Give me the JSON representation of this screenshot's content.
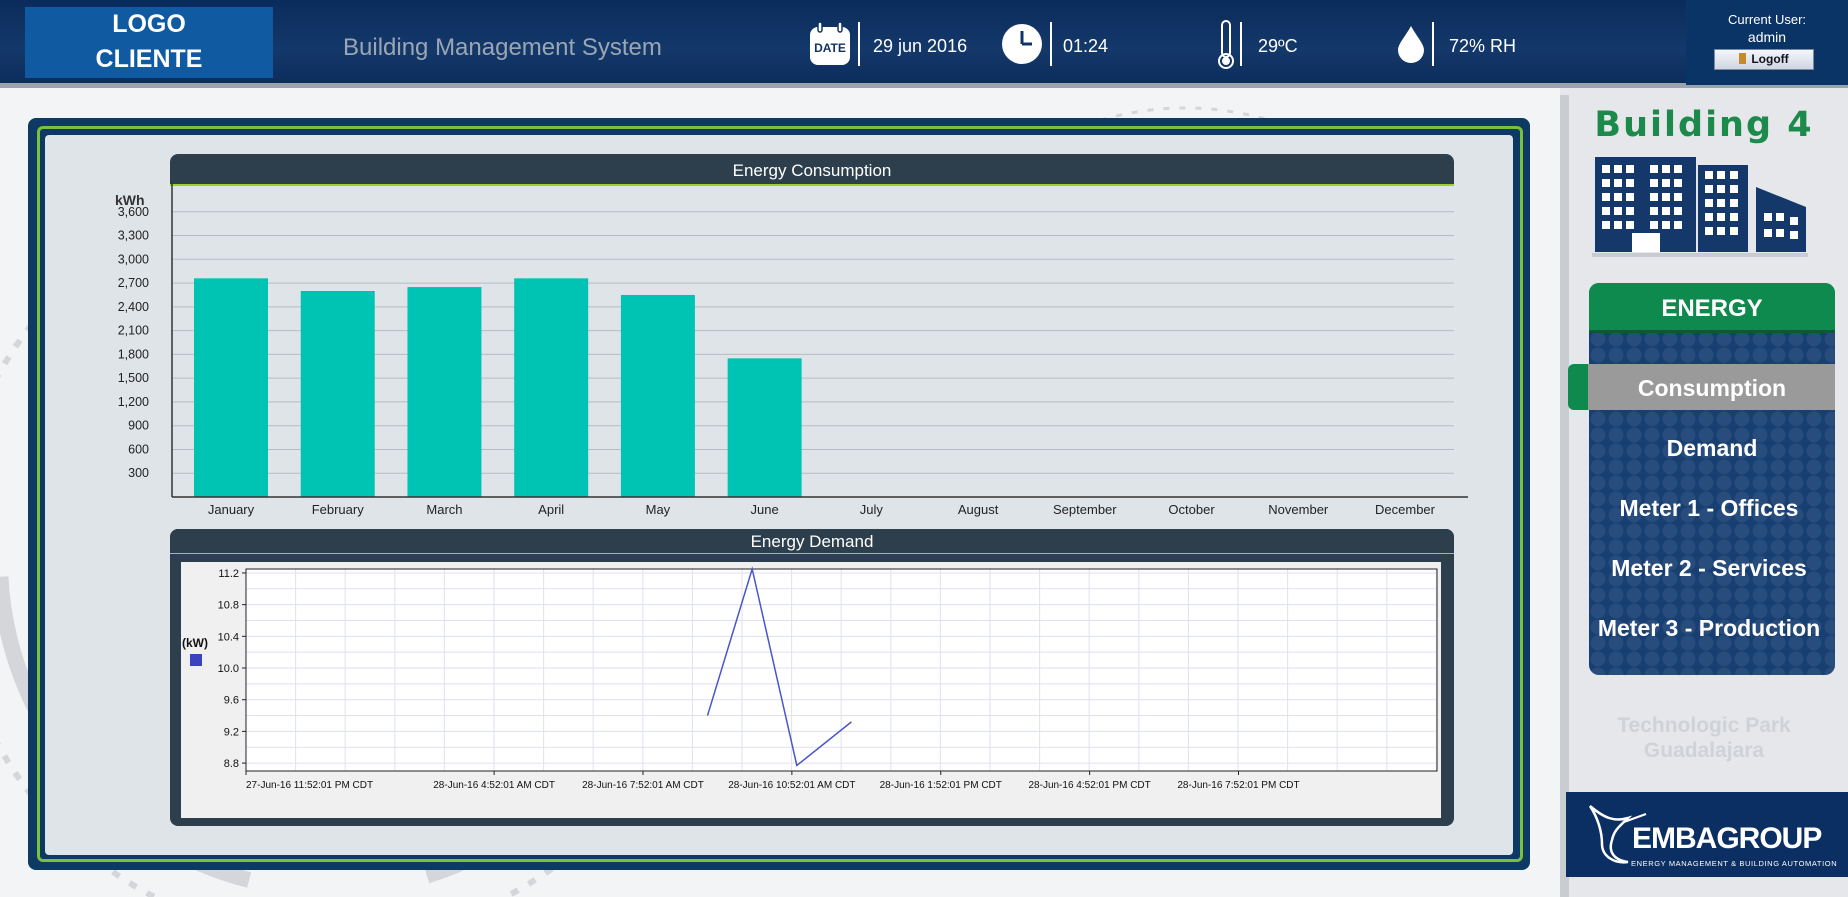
{
  "header": {
    "logo_line1": "LOGO",
    "logo_line2": "CLIENTE",
    "app_title": "Building Management System",
    "date_icon_label": "DATE",
    "date": "29 jun 2016",
    "time": "01:24",
    "temperature": "29ºC",
    "humidity": "72% RH",
    "user_label": "Current User:",
    "user_name": "admin",
    "logoff_label": "Logoff"
  },
  "sidebar": {
    "building_title": "Building 4",
    "section_title": "ENERGY",
    "nav_items": [
      {
        "label": "Consumption",
        "active": true
      },
      {
        "label": "Demand",
        "active": false
      },
      {
        "label": "Meter 1 - Offices",
        "active": false
      },
      {
        "label": "Meter 2 - Services",
        "active": false
      },
      {
        "label": "Meter 3 - Production",
        "active": false
      }
    ],
    "location_line1": "Technologic Park",
    "location_line2": "Guadalajara",
    "company_logo": "EMBAGROUP",
    "company_tagline": "ENERGY MANAGEMENT & BUILDING AUTOMATION"
  },
  "colors": {
    "accent_green": "#0e8a4e",
    "bar_color": "#00c4b3",
    "header_blue": "#0a2c5c",
    "demand_line": "#4a55c8"
  },
  "chart_data": [
    {
      "type": "bar",
      "title": "Energy Consumption",
      "ylabel": "kWh",
      "categories": [
        "January",
        "February",
        "March",
        "April",
        "May",
        "June",
        "July",
        "August",
        "September",
        "October",
        "November",
        "December"
      ],
      "values": [
        2760,
        2600,
        2650,
        2760,
        2550,
        1750,
        null,
        null,
        null,
        null,
        null,
        null
      ],
      "ylim": [
        0,
        3900
      ],
      "yticks": [
        300,
        600,
        900,
        1200,
        1500,
        1800,
        2100,
        2400,
        2700,
        3000,
        3300,
        3600
      ],
      "ytick_labels": [
        "300",
        "600",
        "900",
        "1,200",
        "1,500",
        "1,800",
        "2,100",
        "2,400",
        "2,700",
        "3,000",
        "3,300",
        "3,600"
      ],
      "grid": true
    },
    {
      "type": "line",
      "title": "Energy Demand",
      "ylabel": "(kW)",
      "ylim": [
        8.7,
        11.25
      ],
      "yticks": [
        8.8,
        9.2,
        9.6,
        10.0,
        10.4,
        10.8,
        11.2
      ],
      "xlim_hours": [
        0,
        24
      ],
      "x_tick_labels": [
        "27-Jun-16 11:52:01 PM CDT",
        "28-Jun-16 4:52:01 AM CDT",
        "28-Jun-16 7:52:01 AM CDT",
        "28-Jun-16 10:52:01 AM CDT",
        "28-Jun-16 1:52:01 PM CDT",
        "28-Jun-16 4:52:01 PM CDT",
        "28-Jun-16 7:52:01 PM CDT"
      ],
      "x_tick_hours": [
        0,
        5,
        8,
        11,
        14,
        17,
        20
      ],
      "series": [
        {
          "points": [
            [
              9.3,
              9.4
            ],
            [
              10.2,
              11.25
            ],
            [
              11.1,
              8.77
            ],
            [
              12.2,
              9.32
            ]
          ]
        }
      ],
      "grid": true
    }
  ]
}
